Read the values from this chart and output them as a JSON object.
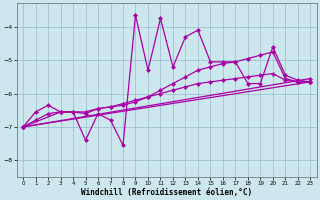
{
  "xlabel": "Windchill (Refroidissement éolien,°C)",
  "bg_color": "#cce8ee",
  "line_color": "#aa00aa",
  "grid_color": "#99bbcc",
  "x_ticks": [
    0,
    1,
    2,
    3,
    4,
    5,
    6,
    7,
    8,
    9,
    10,
    11,
    12,
    13,
    14,
    15,
    16,
    17,
    18,
    19,
    20,
    21,
    22,
    23
  ],
  "y_ticks": [
    -8,
    -7,
    -6,
    -5,
    -4
  ],
  "ylim": [
    -8.5,
    -3.3
  ],
  "xlim": [
    -0.5,
    23.5
  ],
  "jagged_x": [
    0,
    1,
    2,
    3,
    4,
    5,
    6,
    7,
    8,
    9,
    10,
    11,
    12,
    13,
    14,
    15,
    16,
    17,
    18,
    19,
    20,
    21,
    22,
    23
  ],
  "jagged_y": [
    -7.0,
    -6.55,
    -6.35,
    -6.55,
    -6.55,
    -7.4,
    -6.6,
    -6.8,
    -7.55,
    -3.65,
    -5.3,
    -3.75,
    -5.2,
    -4.3,
    -4.1,
    -5.05,
    -5.05,
    -5.05,
    -5.7,
    -5.7,
    -4.6,
    -5.45,
    -5.6,
    -5.65
  ],
  "line1_x": [
    0,
    23
  ],
  "line1_y": [
    -7.0,
    -5.55
  ],
  "line2_x": [
    0,
    23
  ],
  "line2_y": [
    -7.0,
    -5.65
  ],
  "line3_x": [
    0,
    3,
    5,
    6,
    7,
    8,
    9,
    10,
    11,
    12,
    13,
    14,
    15,
    16,
    17,
    18,
    19,
    20,
    21,
    22,
    23
  ],
  "line3_y": [
    -7.0,
    -6.55,
    -6.55,
    -6.45,
    -6.4,
    -6.35,
    -6.25,
    -6.1,
    -5.9,
    -5.7,
    -5.5,
    -5.3,
    -5.2,
    -5.1,
    -5.05,
    -4.95,
    -4.85,
    -4.75,
    -5.55,
    -5.65,
    -5.65
  ],
  "line4_x": [
    0,
    1,
    2,
    3,
    4,
    5,
    6,
    7,
    8,
    9,
    10,
    11,
    12,
    13,
    14,
    15,
    16,
    17,
    18,
    19,
    20,
    21,
    22,
    23
  ],
  "line4_y": [
    -7.0,
    -6.8,
    -6.6,
    -6.55,
    -6.55,
    -6.6,
    -6.45,
    -6.4,
    -6.3,
    -6.2,
    -6.1,
    -6.0,
    -5.9,
    -5.8,
    -5.7,
    -5.65,
    -5.6,
    -5.55,
    -5.5,
    -5.45,
    -5.4,
    -5.6,
    -5.65,
    -5.65
  ]
}
